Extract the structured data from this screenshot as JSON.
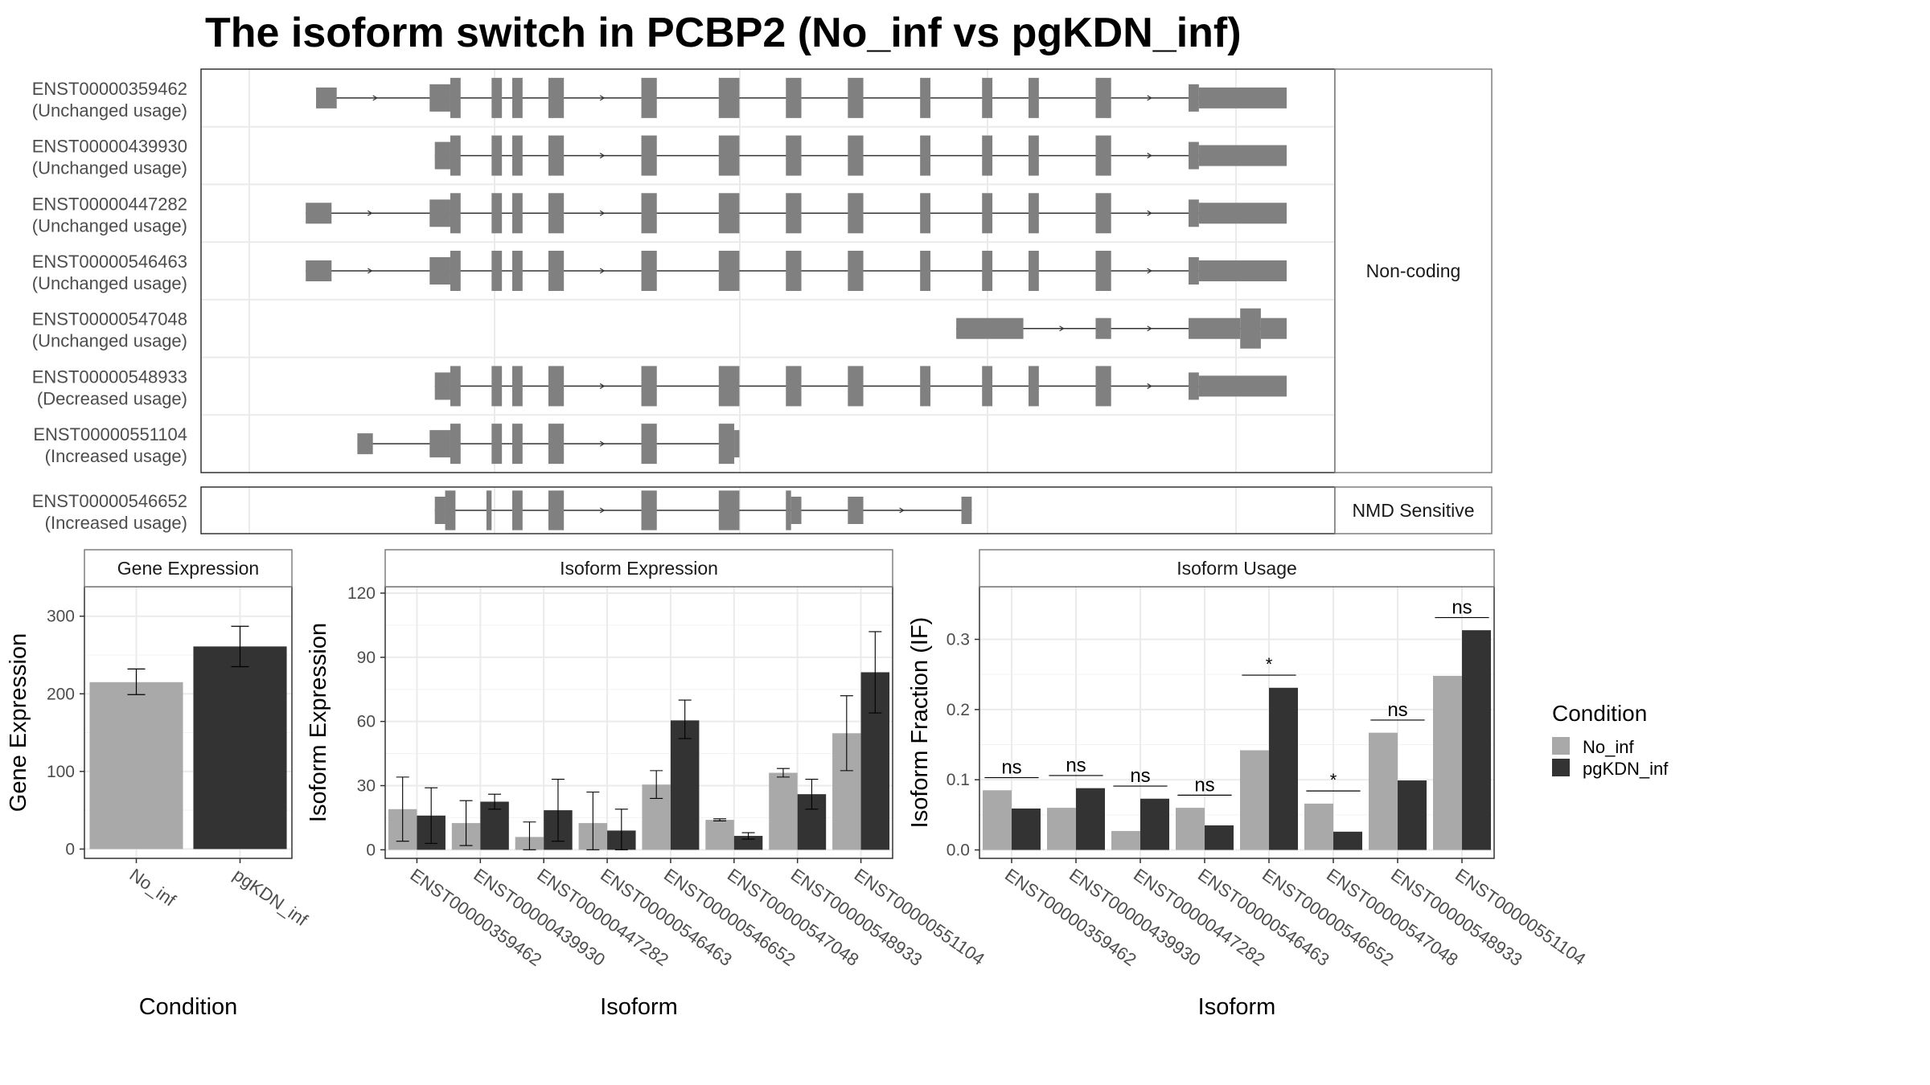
{
  "title": "The isoform switch in PCBP2 (No_inf vs pgKDN_inf)",
  "colors": {
    "no_inf": "#a9a9a9",
    "pgkdn_inf": "#333333",
    "exon": "#808080",
    "grid": "#ebebeb",
    "panel_border": "#333333",
    "strip_border": "#7f7f7f",
    "strip_fill": "#ffffff",
    "text": "#4d4d4d"
  },
  "transcripts": {
    "groups": [
      {
        "label": "Non-coding",
        "rows": [
          {
            "id": "ENST00000359462",
            "status": "(Unchanged usage)",
            "exons": [
              [
                0.06,
                0.08,
                "t"
              ],
              [
                0.17,
                0.19,
                "m"
              ],
              [
                0.19,
                0.2,
                "s"
              ],
              [
                0.23,
                0.24,
                "s"
              ],
              [
                0.25,
                0.26,
                "s"
              ],
              [
                0.285,
                0.3,
                "s"
              ],
              [
                0.375,
                0.39,
                "s"
              ],
              [
                0.45,
                0.47,
                "s"
              ],
              [
                0.515,
                0.53,
                "s"
              ],
              [
                0.575,
                0.59,
                "s"
              ],
              [
                0.645,
                0.655,
                "s"
              ],
              [
                0.705,
                0.715,
                "s"
              ],
              [
                0.75,
                0.76,
                "s"
              ],
              [
                0.815,
                0.83,
                "s"
              ],
              [
                0.905,
                0.915,
                "m"
              ],
              [
                0.915,
                1.0,
                "t"
              ]
            ]
          },
          {
            "id": "ENST00000439930",
            "status": "(Unchanged usage)",
            "exons": [
              [
                0.175,
                0.19,
                "m"
              ],
              [
                0.19,
                0.2,
                "s"
              ],
              [
                0.23,
                0.24,
                "s"
              ],
              [
                0.25,
                0.26,
                "s"
              ],
              [
                0.285,
                0.3,
                "s"
              ],
              [
                0.375,
                0.39,
                "s"
              ],
              [
                0.45,
                0.47,
                "s"
              ],
              [
                0.515,
                0.53,
                "s"
              ],
              [
                0.575,
                0.59,
                "s"
              ],
              [
                0.645,
                0.655,
                "s"
              ],
              [
                0.705,
                0.715,
                "s"
              ],
              [
                0.75,
                0.76,
                "s"
              ],
              [
                0.815,
                0.83,
                "s"
              ],
              [
                0.905,
                0.915,
                "m"
              ],
              [
                0.915,
                1.0,
                "t"
              ]
            ]
          },
          {
            "id": "ENST00000447282",
            "status": "(Unchanged usage)",
            "exons": [
              [
                0.05,
                0.075,
                "t"
              ],
              [
                0.17,
                0.19,
                "m"
              ],
              [
                0.19,
                0.2,
                "s"
              ],
              [
                0.23,
                0.24,
                "s"
              ],
              [
                0.25,
                0.26,
                "s"
              ],
              [
                0.285,
                0.3,
                "s"
              ],
              [
                0.375,
                0.39,
                "s"
              ],
              [
                0.45,
                0.47,
                "s"
              ],
              [
                0.515,
                0.53,
                "s"
              ],
              [
                0.575,
                0.59,
                "s"
              ],
              [
                0.645,
                0.655,
                "s"
              ],
              [
                0.705,
                0.715,
                "s"
              ],
              [
                0.75,
                0.76,
                "s"
              ],
              [
                0.815,
                0.83,
                "s"
              ],
              [
                0.905,
                0.915,
                "m"
              ],
              [
                0.915,
                1.0,
                "t"
              ]
            ]
          },
          {
            "id": "ENST00000546463",
            "status": "(Unchanged usage)",
            "exons": [
              [
                0.05,
                0.075,
                "t"
              ],
              [
                0.17,
                0.19,
                "m"
              ],
              [
                0.19,
                0.2,
                "s"
              ],
              [
                0.23,
                0.24,
                "s"
              ],
              [
                0.25,
                0.26,
                "s"
              ],
              [
                0.285,
                0.3,
                "s"
              ],
              [
                0.375,
                0.39,
                "s"
              ],
              [
                0.45,
                0.47,
                "s"
              ],
              [
                0.515,
                0.53,
                "s"
              ],
              [
                0.575,
                0.59,
                "s"
              ],
              [
                0.645,
                0.655,
                "s"
              ],
              [
                0.705,
                0.715,
                "s"
              ],
              [
                0.75,
                0.76,
                "s"
              ],
              [
                0.815,
                0.83,
                "s"
              ],
              [
                0.905,
                0.915,
                "m"
              ],
              [
                0.915,
                1.0,
                "t"
              ]
            ]
          },
          {
            "id": "ENST00000547048",
            "status": "(Unchanged usage)",
            "exons": [
              [
                0.68,
                0.745,
                "t"
              ],
              [
                0.815,
                0.83,
                "t"
              ],
              [
                0.905,
                0.955,
                "t"
              ],
              [
                0.955,
                0.975,
                "s"
              ],
              [
                0.975,
                1.0,
                "t"
              ]
            ]
          },
          {
            "id": "ENST00000548933",
            "status": "(Decreased usage)",
            "exons": [
              [
                0.175,
                0.19,
                "m"
              ],
              [
                0.19,
                0.2,
                "s"
              ],
              [
                0.23,
                0.24,
                "s"
              ],
              [
                0.25,
                0.26,
                "s"
              ],
              [
                0.285,
                0.3,
                "s"
              ],
              [
                0.375,
                0.39,
                "s"
              ],
              [
                0.45,
                0.47,
                "s"
              ],
              [
                0.515,
                0.53,
                "s"
              ],
              [
                0.575,
                0.59,
                "s"
              ],
              [
                0.645,
                0.655,
                "s"
              ],
              [
                0.705,
                0.715,
                "s"
              ],
              [
                0.75,
                0.76,
                "s"
              ],
              [
                0.815,
                0.83,
                "s"
              ],
              [
                0.905,
                0.915,
                "m"
              ],
              [
                0.915,
                1.0,
                "t"
              ]
            ]
          },
          {
            "id": "ENST00000551104",
            "status": "(Increased usage)",
            "exons": [
              [
                0.1,
                0.115,
                "t"
              ],
              [
                0.17,
                0.19,
                "m"
              ],
              [
                0.19,
                0.2,
                "s"
              ],
              [
                0.23,
                0.24,
                "s"
              ],
              [
                0.25,
                0.26,
                "s"
              ],
              [
                0.285,
                0.3,
                "s"
              ],
              [
                0.375,
                0.39,
                "s"
              ],
              [
                0.45,
                0.465,
                "s"
              ],
              [
                0.465,
                0.47,
                "m"
              ]
            ]
          }
        ]
      },
      {
        "label": "NMD Sensitive",
        "rows": [
          {
            "id": "ENST00000546652",
            "status": "(Increased usage)",
            "exons": [
              [
                0.175,
                0.185,
                "m"
              ],
              [
                0.185,
                0.195,
                "s"
              ],
              [
                0.225,
                0.23,
                "s"
              ],
              [
                0.25,
                0.26,
                "s"
              ],
              [
                0.285,
                0.3,
                "s"
              ],
              [
                0.375,
                0.39,
                "s"
              ],
              [
                0.45,
                0.47,
                "s"
              ],
              [
                0.515,
                0.52,
                "s"
              ],
              [
                0.52,
                0.53,
                "m"
              ],
              [
                0.575,
                0.59,
                "m"
              ],
              [
                0.685,
                0.695,
                "m"
              ]
            ]
          }
        ]
      }
    ]
  },
  "chart_data": [
    {
      "type": "bar",
      "panel": "Gene Expression",
      "xlabel": "Condition",
      "ylabel": "Gene Expression",
      "categories": [
        "No_inf",
        "pgKDN_inf"
      ],
      "values": [
        215,
        261
      ],
      "error": [
        [
          199,
          232
        ],
        [
          235,
          287
        ]
      ],
      "ylim": [
        -12,
        338
      ],
      "yticks": [
        0,
        100,
        200,
        300
      ]
    },
    {
      "type": "bar",
      "panel": "Isoform Expression",
      "xlabel": "Isoform",
      "ylabel": "Isoform Expression",
      "categories": [
        "ENST00000359462",
        "ENST00000439930",
        "ENST00000447282",
        "ENST00000546463",
        "ENST00000546652",
        "ENST00000547048",
        "ENST00000548933",
        "ENST00000551104"
      ],
      "series": [
        {
          "name": "No_inf",
          "values": [
            19,
            12.5,
            6,
            12.5,
            30.5,
            14,
            36,
            54.5
          ],
          "error": [
            [
              4,
              34
            ],
            [
              2,
              23
            ],
            [
              0,
              13
            ],
            [
              0,
              27
            ],
            [
              24,
              37
            ],
            [
              13.5,
              14.5
            ],
            [
              34,
              38
            ],
            [
              37,
              72
            ]
          ]
        },
        {
          "name": "pgKDN_inf",
          "values": [
            16,
            22.5,
            18.5,
            9,
            60.5,
            6.5,
            26,
            83
          ],
          "error": [
            [
              3,
              29
            ],
            [
              19,
              26
            ],
            [
              4,
              33
            ],
            [
              0,
              19
            ],
            [
              52,
              70
            ],
            [
              5,
              8
            ],
            [
              19,
              33
            ],
            [
              64,
              102
            ]
          ]
        }
      ],
      "ylim": [
        -4,
        123
      ],
      "yticks": [
        0,
        30,
        60,
        90,
        120
      ]
    },
    {
      "type": "bar",
      "panel": "Isoform Usage",
      "xlabel": "Isoform",
      "ylabel": "Isoform Fraction (IF)",
      "categories": [
        "ENST00000359462",
        "ENST00000439930",
        "ENST00000447282",
        "ENST00000546463",
        "ENST00000546652",
        "ENST00000547048",
        "ENST00000548933",
        "ENST00000551104"
      ],
      "series": [
        {
          "name": "No_inf",
          "values": [
            0.085,
            0.06,
            0.027,
            0.06,
            0.142,
            0.066,
            0.167,
            0.248
          ]
        },
        {
          "name": "pgKDN_inf",
          "values": [
            0.059,
            0.088,
            0.073,
            0.035,
            0.231,
            0.026,
            0.099,
            0.313
          ]
        }
      ],
      "significance": [
        "ns",
        "ns",
        "ns",
        "ns",
        "*",
        "*",
        "ns",
        "ns"
      ],
      "ylim": [
        -0.012,
        0.375
      ],
      "yticks": [
        0.0,
        0.1,
        0.2,
        0.3
      ],
      "ytick_labels": [
        "0.0",
        "0.1",
        "0.2",
        "0.3"
      ]
    }
  ],
  "legend": {
    "title": "Condition",
    "entries": [
      {
        "label": "No_inf",
        "color": "#a9a9a9"
      },
      {
        "label": "pgKDN_inf",
        "color": "#333333"
      }
    ]
  }
}
